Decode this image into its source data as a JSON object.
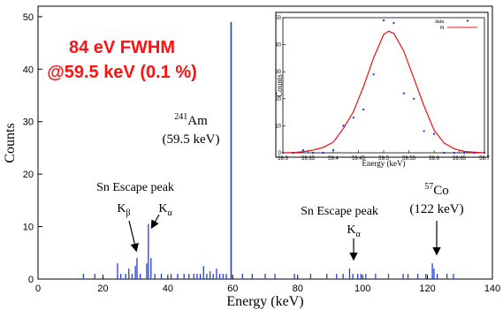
{
  "chart_data": [
    {
      "type": "bar",
      "xlabel": "Energy (keV)",
      "ylabel": "Counts",
      "xlim": [
        0,
        140
      ],
      "ylim": [
        0,
        52
      ],
      "xticks": [
        0,
        20,
        40,
        60,
        80,
        100,
        120,
        140
      ],
      "yticks": [
        0,
        10,
        20,
        30,
        40,
        50
      ],
      "grid": false,
      "headline": [
        "84 eV FWHM",
        "@59.5 keV (0.1 %)"
      ],
      "series": [
        {
          "x": [
            14,
            17.5,
            24.5,
            25.5,
            27,
            28,
            29,
            30,
            30.5,
            31.5,
            33.5,
            34,
            34.8,
            36,
            38,
            41,
            43,
            45,
            46.5,
            48,
            49,
            50,
            51,
            52,
            53,
            54,
            55,
            56,
            57,
            58,
            59.5,
            63,
            66,
            70,
            73,
            79,
            84,
            89,
            92,
            94,
            96,
            97,
            98.5,
            99.5,
            101,
            104,
            108,
            112.5,
            114,
            117,
            119.5,
            121.5,
            122,
            123,
            126,
            128
          ],
          "values": [
            1,
            1,
            3,
            1,
            1,
            2,
            1,
            2.5,
            4,
            1,
            3,
            10.5,
            4,
            1,
            1,
            1,
            1,
            1,
            1,
            1,
            1,
            1,
            2.5,
            1,
            1.5,
            1,
            2,
            1,
            1,
            1,
            49,
            1,
            1,
            1,
            1,
            1,
            1,
            1,
            1,
            1,
            2,
            1,
            1,
            1,
            1,
            1,
            1,
            1,
            1,
            1,
            1,
            3,
            2,
            1,
            1,
            1
          ]
        }
      ],
      "annotations": {
        "am_label": "241Am",
        "am_energy": "(59.5 keV)",
        "sn_escape_left": "Sn Escape peak",
        "k_beta": "Kβ",
        "k_alpha_left": "Kα",
        "sn_escape_right": "Sn Escape peak",
        "k_alpha_right": "Kα",
        "co_label": "57Co",
        "co_energy": "(122 keV)"
      }
    },
    {
      "type": "scatter",
      "inset": true,
      "xlabel": "Energy (keV)",
      "ylabel": "Counts",
      "xlim": [
        59.3,
        59.7
      ],
      "ylim": [
        0,
        50
      ],
      "xticks": [
        59.3,
        59.35,
        59.4,
        59.45,
        59.5,
        59.55,
        59.6,
        59.65,
        59.7
      ],
      "yticks": [
        0,
        10,
        20,
        30,
        40,
        50
      ],
      "legend_position": "top-right",
      "series": [
        {
          "name": "data",
          "x": [
            59.3,
            59.32,
            59.34,
            59.36,
            59.38,
            59.4,
            59.42,
            59.44,
            59.46,
            59.48,
            59.5,
            59.52,
            59.54,
            59.56,
            59.58,
            59.6,
            59.62,
            59.64,
            59.66,
            59.68,
            59.7
          ],
          "y": [
            0,
            0,
            1,
            0,
            0,
            1,
            10,
            13,
            16,
            29,
            49,
            48,
            22,
            20,
            8,
            7,
            0,
            0,
            0,
            0,
            0
          ]
        },
        {
          "name": "fit",
          "x": [
            59.3,
            59.32,
            59.34,
            59.36,
            59.38,
            59.4,
            59.42,
            59.44,
            59.46,
            59.48,
            59.5,
            59.51,
            59.52,
            59.54,
            59.56,
            59.58,
            59.6,
            59.62,
            59.64,
            59.66,
            59.68,
            59.7
          ],
          "y": [
            0,
            0.1,
            0.4,
            1.0,
            2.0,
            3.9,
            9.0,
            15.2,
            24.5,
            35.1,
            43.8,
            45.0,
            44.2,
            37.6,
            27.5,
            17.4,
            8.4,
            3.6,
            1.5,
            0.5,
            0.2,
            0
          ]
        }
      ]
    }
  ],
  "colors": {
    "bars": "#1f3fd6",
    "headline": "#ff1111",
    "inset_points": "#2233dd",
    "inset_fit": "#ee1111"
  }
}
